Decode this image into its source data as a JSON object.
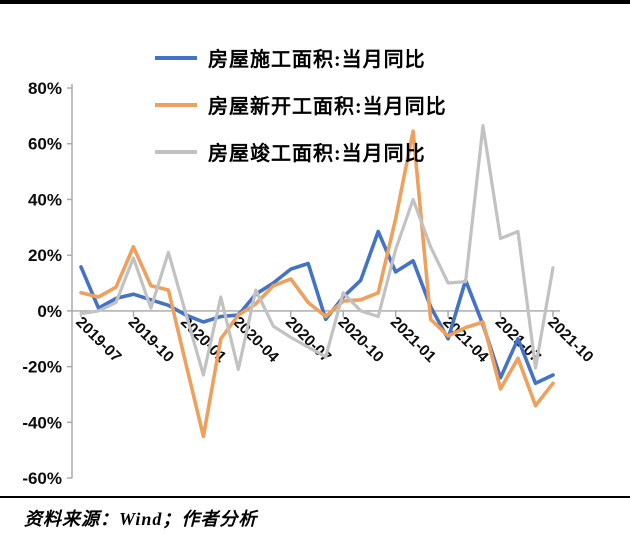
{
  "legend": {
    "items": [
      {
        "id": "construction",
        "label": "房屋施工面积:当月同比",
        "color": "#4472C4"
      },
      {
        "id": "new-starts",
        "label": "房屋新开工面积:当月同比",
        "color": "#EEA05D"
      },
      {
        "id": "completions",
        "label": "房屋竣工面积:当月同比",
        "color": "#C2C2C2"
      }
    ]
  },
  "source": {
    "text": "资料来源：Wind；作者分析"
  },
  "chart_data": {
    "type": "line",
    "title": "",
    "xlabel": "",
    "ylabel": "",
    "y_unit": "%",
    "ylim": [
      -60,
      80
    ],
    "grid": false,
    "legend_position": "top-left-vertical",
    "y_ticks": [
      "80%",
      "60%",
      "40%",
      "20%",
      "0%",
      "-20%",
      "-40%",
      "-60%"
    ],
    "y_tick_values": [
      80,
      60,
      40,
      20,
      0,
      -20,
      -40,
      -60
    ],
    "x_tick_labels": [
      "2019-07",
      "2019-10",
      "2020-01",
      "2020-04",
      "2020-07",
      "2020-10",
      "2021-01",
      "2021-04",
      "2021-07",
      "2021-10"
    ],
    "categories": [
      "2019-07",
      "2019-08",
      "2019-09",
      "2019-10",
      "2019-11",
      "2019-12",
      "2020-01",
      "2020-02",
      "2020-03",
      "2020-04",
      "2020-05",
      "2020-06",
      "2020-07",
      "2020-08",
      "2020-09",
      "2020-10",
      "2020-11",
      "2020-12",
      "2021-01",
      "2021-02",
      "2021-03",
      "2021-04",
      "2021-05",
      "2021-06",
      "2021-07",
      "2021-08",
      "2021-09",
      "2021-10"
    ],
    "series": [
      {
        "name": "房屋施工面积:当月同比",
        "color": "#4472C4",
        "values": [
          15.8,
          1,
          4.5,
          6,
          4,
          2,
          -1.5,
          -4,
          -2,
          -1.5,
          6,
          10,
          15,
          17,
          -3,
          5,
          11,
          28.5,
          14,
          18,
          1.5,
          -10,
          11,
          -5,
          -24,
          -10,
          -26,
          -23
        ]
      },
      {
        "name": "房屋新开工面积:当月同比",
        "color": "#EEA05D",
        "values": [
          6.5,
          5,
          8.5,
          23,
          9,
          7.5,
          -19,
          -45,
          -10,
          -1.5,
          2.5,
          9,
          11.5,
          3,
          -2,
          3.5,
          4,
          6.5,
          33,
          64.5,
          -3,
          -9,
          -6,
          -4,
          -28,
          -17,
          -34,
          -26
        ]
      },
      {
        "name": "房屋竣工面积:当月同比",
        "color": "#C2C2C2",
        "values": [
          -1,
          0,
          3,
          19,
          1,
          21,
          -1,
          -23,
          5,
          -21,
          7.5,
          -5.5,
          -9.5,
          -13,
          -16.5,
          6.5,
          0,
          -2,
          22,
          40,
          23,
          10,
          10.5,
          66.5,
          26,
          28.5,
          -20.5,
          15.5
        ]
      }
    ]
  }
}
